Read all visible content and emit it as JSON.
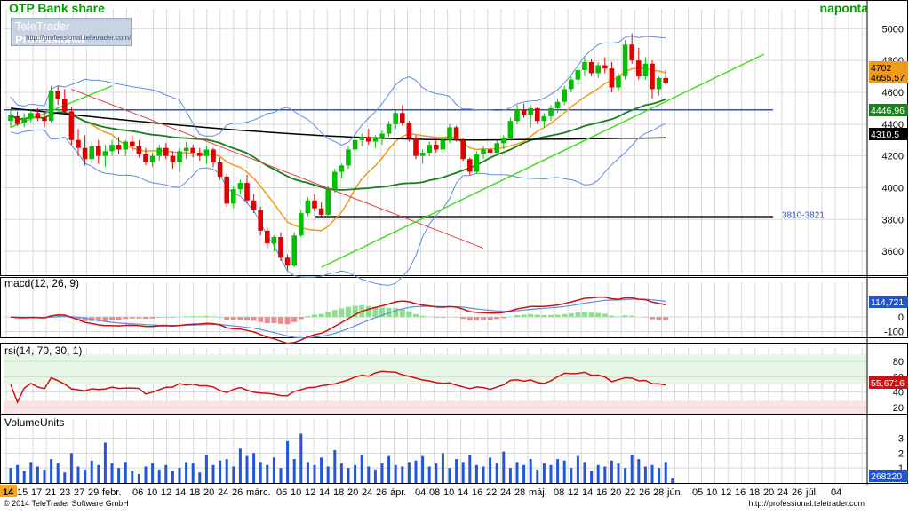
{
  "header": {
    "title": "OTP Bank share",
    "period": "naponta"
  },
  "logo": {
    "brand_regular": "TeleTrader ",
    "brand_bold": "Professional",
    "url": "http://professional.teletrader.com/"
  },
  "footer": {
    "copyright": "© 2014 TeleTrader Software GmbH",
    "url": "http://professional.teletrader.com"
  },
  "colors": {
    "up": "#00c000",
    "down": "#e00000",
    "grid": "#d8d8d8",
    "bollinger": "#5a8ee6",
    "ma_short": "#f29a1a",
    "ma_mid": "#1a7f1a",
    "ma_long": "#000000",
    "trend": "#44dd22",
    "trend_down": "#e04040",
    "level": "#2255cc",
    "macd_line": "#d01010",
    "macd_signal": "#5a8ee6",
    "rsi": "#d01010",
    "volume": "#2255dd",
    "x_axis_bg": "#f5a623"
  },
  "chart_data": [
    {
      "name": "price",
      "type": "candlestick",
      "title": "OTP Bank share",
      "ylim": [
        3450,
        5080
      ],
      "y_ticks": [
        3600,
        3800,
        4000,
        4200,
        4400,
        4600,
        4800,
        5000
      ],
      "grid": true,
      "candles": [
        [
          4420,
          4490,
          4380,
          4460
        ],
        [
          4450,
          4480,
          4390,
          4400
        ],
        [
          4410,
          4470,
          4380,
          4440
        ],
        [
          4440,
          4490,
          4410,
          4470
        ],
        [
          4470,
          4500,
          4420,
          4440
        ],
        [
          4440,
          4480,
          4380,
          4420
        ],
        [
          4420,
          4640,
          4410,
          4610
        ],
        [
          4610,
          4640,
          4520,
          4560
        ],
        [
          4560,
          4620,
          4470,
          4480
        ],
        [
          4480,
          4510,
          4270,
          4300
        ],
        [
          4300,
          4370,
          4200,
          4250
        ],
        [
          4250,
          4330,
          4140,
          4180
        ],
        [
          4180,
          4290,
          4150,
          4260
        ],
        [
          4260,
          4300,
          4150,
          4200
        ],
        [
          4200,
          4270,
          4130,
          4230
        ],
        [
          4230,
          4300,
          4200,
          4270
        ],
        [
          4270,
          4320,
          4210,
          4240
        ],
        [
          4240,
          4300,
          4200,
          4290
        ],
        [
          4290,
          4330,
          4230,
          4260
        ],
        [
          4260,
          4300,
          4190,
          4210
        ],
        [
          4210,
          4250,
          4140,
          4160
        ],
        [
          4160,
          4220,
          4130,
          4200
        ],
        [
          4200,
          4270,
          4170,
          4250
        ],
        [
          4250,
          4280,
          4180,
          4200
        ],
        [
          4200,
          4230,
          4120,
          4160
        ],
        [
          4160,
          4250,
          4100,
          4230
        ],
        [
          4230,
          4290,
          4180,
          4250
        ],
        [
          4250,
          4270,
          4190,
          4220
        ],
        [
          4220,
          4250,
          4170,
          4200
        ],
        [
          4200,
          4260,
          4150,
          4240
        ],
        [
          4240,
          4250,
          4130,
          4160
        ],
        [
          4160,
          4190,
          4050,
          4070
        ],
        [
          4070,
          4090,
          3880,
          3900
        ],
        [
          3900,
          4010,
          3870,
          3990
        ],
        [
          3990,
          4050,
          3960,
          4030
        ],
        [
          4030,
          4080,
          3900,
          3920
        ],
        [
          3920,
          3960,
          3840,
          3860
        ],
        [
          3860,
          3880,
          3700,
          3730
        ],
        [
          3730,
          3750,
          3620,
          3650
        ],
        [
          3650,
          3700,
          3600,
          3690
        ],
        [
          3690,
          3720,
          3540,
          3560
        ],
        [
          3560,
          3580,
          3480,
          3510
        ],
        [
          3510,
          3720,
          3500,
          3700
        ],
        [
          3700,
          3860,
          3690,
          3840
        ],
        [
          3840,
          3940,
          3820,
          3920
        ],
        [
          3920,
          3960,
          3850,
          3870
        ],
        [
          3870,
          3910,
          3810,
          3830
        ],
        [
          3830,
          4010,
          3820,
          3990
        ],
        [
          3990,
          4120,
          3970,
          4100
        ],
        [
          4100,
          4150,
          4060,
          4140
        ],
        [
          4140,
          4260,
          4120,
          4240
        ],
        [
          4240,
          4320,
          4200,
          4300
        ],
        [
          4300,
          4340,
          4260,
          4320
        ],
        [
          4320,
          4370,
          4270,
          4290
        ],
        [
          4290,
          4330,
          4250,
          4310
        ],
        [
          4310,
          4360,
          4270,
          4340
        ],
        [
          4340,
          4420,
          4320,
          4400
        ],
        [
          4400,
          4490,
          4370,
          4470
        ],
        [
          4470,
          4520,
          4390,
          4410
        ],
        [
          4410,
          4420,
          4290,
          4310
        ],
        [
          4310,
          4330,
          4180,
          4200
        ],
        [
          4200,
          4240,
          4150,
          4220
        ],
        [
          4220,
          4290,
          4200,
          4270
        ],
        [
          4270,
          4310,
          4220,
          4240
        ],
        [
          4240,
          4320,
          4220,
          4300
        ],
        [
          4300,
          4400,
          4280,
          4380
        ],
        [
          4380,
          4390,
          4290,
          4300
        ],
        [
          4300,
          4310,
          4170,
          4180
        ],
        [
          4180,
          4190,
          4080,
          4100
        ],
        [
          4100,
          4230,
          4090,
          4210
        ],
        [
          4210,
          4260,
          4180,
          4240
        ],
        [
          4240,
          4290,
          4200,
          4220
        ],
        [
          4220,
          4300,
          4200,
          4280
        ],
        [
          4280,
          4330,
          4240,
          4310
        ],
        [
          4310,
          4440,
          4300,
          4420
        ],
        [
          4420,
          4520,
          4400,
          4490
        ],
        [
          4490,
          4530,
          4440,
          4460
        ],
        [
          4460,
          4520,
          4380,
          4500
        ],
        [
          4500,
          4510,
          4400,
          4420
        ],
        [
          4420,
          4470,
          4380,
          4450
        ],
        [
          4450,
          4520,
          4420,
          4500
        ],
        [
          4500,
          4560,
          4470,
          4540
        ],
        [
          4540,
          4640,
          4520,
          4620
        ],
        [
          4620,
          4700,
          4600,
          4680
        ],
        [
          4680,
          4760,
          4650,
          4740
        ],
        [
          4740,
          4820,
          4700,
          4790
        ],
        [
          4790,
          4810,
          4700,
          4720
        ],
        [
          4720,
          4790,
          4690,
          4770
        ],
        [
          4770,
          4820,
          4720,
          4750
        ],
        [
          4750,
          4790,
          4600,
          4630
        ],
        [
          4630,
          4720,
          4610,
          4700
        ],
        [
          4700,
          4930,
          4680,
          4900
        ],
        [
          4900,
          4970,
          4780,
          4800
        ],
        [
          4800,
          4880,
          4680,
          4700
        ],
        [
          4700,
          4820,
          4680,
          4780
        ],
        [
          4780,
          4800,
          4560,
          4620
        ],
        [
          4620,
          4700,
          4580,
          4690
        ],
        [
          4690,
          4740,
          4650,
          4655.57
        ]
      ],
      "level_line": 4490,
      "level_band": {
        "low": 3810,
        "high": 3821,
        "label": "3810-3821"
      },
      "value_badges": {
        "last": "4655,57",
        "ma_short": "4702",
        "ma_mid": "4446,96",
        "ma_long": "4310,5"
      }
    },
    {
      "name": "macd",
      "type": "line",
      "title": "macd(12, 26, 9)",
      "ylim": [
        -140,
        190
      ],
      "y_ticks": [
        -100,
        0
      ],
      "y_tick_labels": [
        "-100",
        "0"
      ],
      "last_value": "114,721",
      "grid": true
    },
    {
      "name": "rsi",
      "type": "line",
      "title": "rsi(14, 70, 30, 1)",
      "ylim": [
        12,
        88
      ],
      "y_ticks": [
        20,
        40,
        60,
        80
      ],
      "bands": {
        "upper": 70,
        "lower": 30
      },
      "last_value": "55,6716",
      "grid": true
    },
    {
      "name": "volume",
      "type": "bar",
      "title": "VolumeUnits",
      "ylim": [
        0,
        3.8
      ],
      "y_ticks": [
        1,
        2,
        3
      ],
      "last_value": "268220",
      "values": [
        1.0,
        1.2,
        0.8,
        1.4,
        1.1,
        0.9,
        1.6,
        1.3,
        0.7,
        2.0,
        1.1,
        0.9,
        1.5,
        1.2,
        2.7,
        1.3,
        1.0,
        1.4,
        0.8,
        0.6,
        1.1,
        1.3,
        0.9,
        1.2,
        0.8,
        1.0,
        1.4,
        1.3,
        0.7,
        1.9,
        1.2,
        1.5,
        1.6,
        1.1,
        2.3,
        1.8,
        2.0,
        1.4,
        1.2,
        1.7,
        1.0,
        2.8,
        1.6,
        3.3,
        1.4,
        1.2,
        1.7,
        1.1,
        2.2,
        1.3,
        1.0,
        1.2,
        1.9,
        1.1,
        0.9,
        1.3,
        1.8,
        1.2,
        1.1,
        1.4,
        1.5,
        1.8,
        1.1,
        1.3,
        2.0,
        1.0,
        1.6,
        1.4,
        1.9,
        1.2,
        1.1,
        1.7,
        1.3,
        2.1,
        1.0,
        1.4,
        1.2,
        1.6,
        0.9,
        1.3,
        1.2,
        1.6,
        1.5,
        1.0,
        1.8,
        1.4,
        0.8,
        1.2,
        1.1,
        1.5,
        1.3,
        1.0,
        1.9,
        1.6,
        1.1,
        1.2,
        1.0,
        1.4,
        0.3
      ]
    }
  ],
  "x_axis": {
    "labels": [
      "14",
      "15",
      "17",
      "21",
      "23",
      "27",
      "29",
      "febr.",
      "06",
      "10",
      "12",
      "14",
      "18",
      "20",
      "24",
      "26",
      "márc.",
      "06",
      "10",
      "12",
      "14",
      "18",
      "20",
      "24",
      "26",
      "ápr.",
      "04",
      "08",
      "10",
      "14",
      "16",
      "22",
      "24",
      "28",
      "máj.",
      "08",
      "12",
      "14",
      "16",
      "20",
      "22",
      "26",
      "28",
      "jún.",
      "05",
      "10",
      "12",
      "16",
      "18",
      "20",
      "24",
      "26",
      "júl.",
      "04"
    ]
  }
}
